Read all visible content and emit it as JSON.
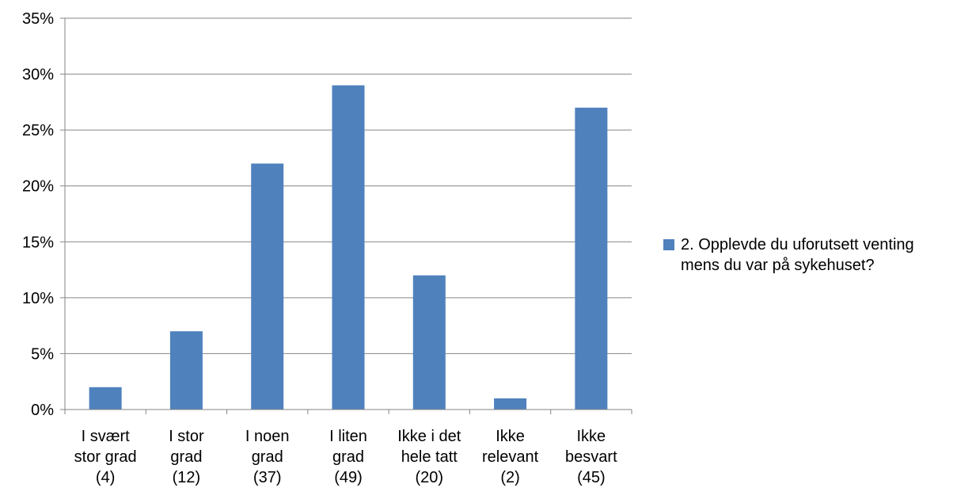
{
  "chart_data": {
    "type": "bar",
    "categories": [
      "I svært\nstor grad\n(4)",
      "I stor\ngrad\n(12)",
      "I noen\ngrad\n(37)",
      "I liten\ngrad\n(49)",
      "Ikke i det\nhele tatt\n(20)",
      "Ikke\nrelevant\n(2)",
      "Ikke\nbesvart\n(45)"
    ],
    "series": [
      {
        "name": "2. Opplevde du uforutsett venting\nmens du var på sykehuset?",
        "values": [
          2,
          7,
          22,
          29,
          12,
          1,
          27
        ]
      }
    ],
    "ylim": [
      0,
      35
    ],
    "yticks": [
      "0%",
      "5%",
      "10%",
      "15%",
      "20%",
      "25%",
      "30%",
      "35%"
    ],
    "ytick_values": [
      0,
      5,
      10,
      15,
      20,
      25,
      30,
      35
    ],
    "y_unit": "%",
    "grid": true,
    "legend_position": "right",
    "bar_color": "#4f81bd",
    "grid_color": "#868686"
  }
}
